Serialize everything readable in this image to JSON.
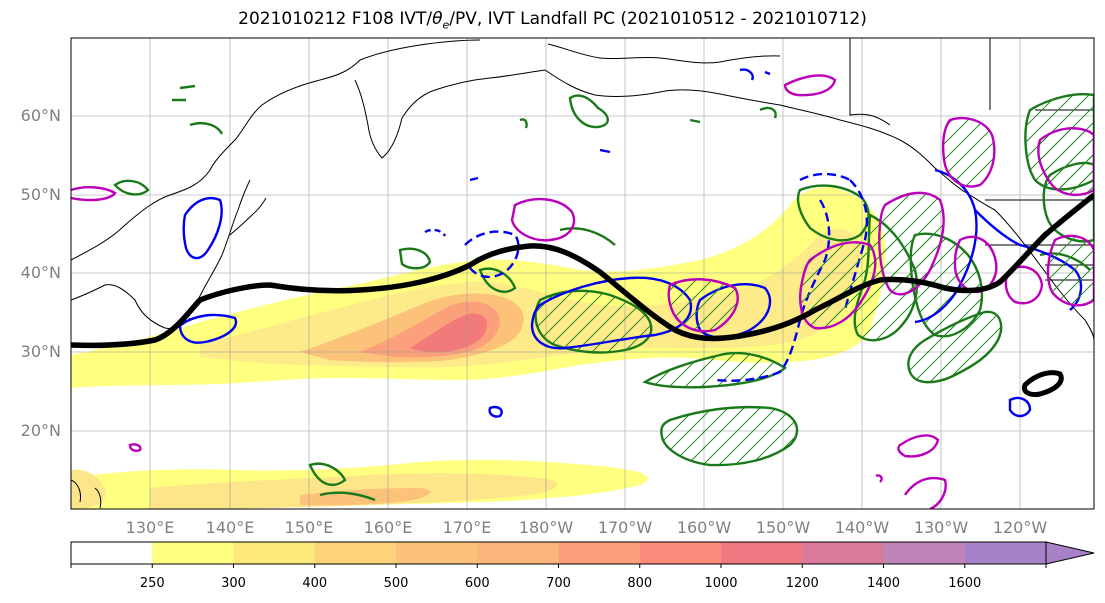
{
  "title": {
    "prefix": "2021010212 F108 IVT/",
    "theta": "θ",
    "theta_sub": "e",
    "suffix": "/PV, IVT Landfall PC (2021010512 - 2021010712)"
  },
  "lat_labels": [
    "60°N",
    "50°N",
    "40°N",
    "30°N",
    "20°N"
  ],
  "lon_labels": [
    "130°E",
    "140°E",
    "150°E",
    "160°E",
    "170°E",
    "180°W",
    "170°W",
    "160°W",
    "150°W",
    "140°W",
    "130°W",
    "120°W"
  ],
  "colorbar": {
    "ticks": [
      "250",
      "300",
      "400",
      "500",
      "600",
      "700",
      "800",
      "1000",
      "1200",
      "1400",
      "1600"
    ],
    "colors": [
      "#ffffff",
      "#ffff80",
      "#fde87a",
      "#fdd37a",
      "#fcc27a",
      "#fcb57a",
      "#fba07a",
      "#fb8a7a",
      "#f07882",
      "#d97a9a",
      "#bf84b8",
      "#a882c8"
    ]
  },
  "colors": {
    "ivt_low": "#ffff80",
    "ivt_high": "#f27a7a",
    "green_contour": "#1a7a1a",
    "blue_contour": "#0000ee",
    "magenta_contour": "#bb00bb",
    "pv_line": "#000000"
  }
}
